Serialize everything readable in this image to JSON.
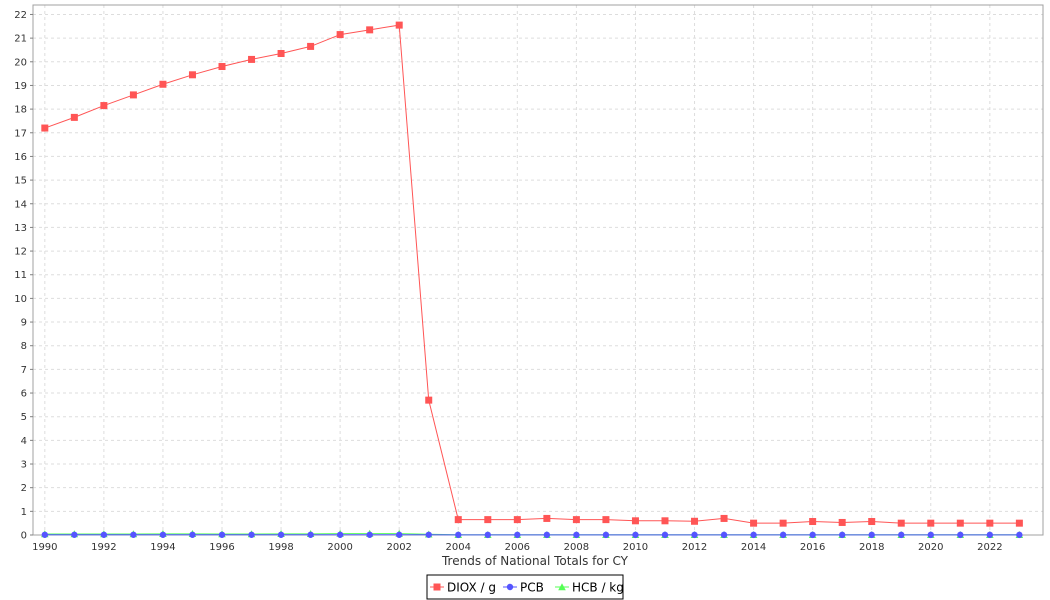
{
  "chart_data": {
    "type": "line",
    "title": "",
    "xlabel": "Trends of National Totals for CY",
    "ylabel": "",
    "x": [
      1990,
      1991,
      1992,
      1993,
      1994,
      1995,
      1996,
      1997,
      1998,
      1999,
      2000,
      2001,
      2002,
      2003,
      2004,
      2005,
      2006,
      2007,
      2008,
      2009,
      2010,
      2011,
      2012,
      2013,
      2014,
      2015,
      2016,
      2017,
      2018,
      2019,
      2020,
      2021,
      2022,
      2023
    ],
    "x_ticks": [
      "1990",
      "1992",
      "1994",
      "1996",
      "1998",
      "2000",
      "2002",
      "2004",
      "2006",
      "2008",
      "2010",
      "2012",
      "2014",
      "2016",
      "2018",
      "2020",
      "2022"
    ],
    "xlim": [
      1989.6,
      2023.8
    ],
    "ylim": [
      0,
      22.4
    ],
    "y_ticks": [
      "0",
      "1",
      "2",
      "3",
      "4",
      "5",
      "6",
      "7",
      "8",
      "9",
      "10",
      "11",
      "12",
      "13",
      "14",
      "15",
      "16",
      "17",
      "18",
      "19",
      "20",
      "21",
      "22"
    ],
    "grid": true,
    "legend_position": "bottom-center",
    "series": [
      {
        "name": "DIOX / g",
        "color": "#ff5555",
        "marker": "square",
        "values": [
          17.2,
          17.65,
          18.15,
          18.6,
          19.05,
          19.45,
          19.8,
          20.1,
          20.35,
          20.65,
          21.15,
          21.35,
          21.55,
          5.7,
          0.65,
          0.65,
          0.65,
          0.7,
          0.65,
          0.65,
          0.6,
          0.6,
          0.58,
          0.7,
          0.5,
          0.5,
          0.57,
          0.53,
          0.57,
          0.5,
          0.5,
          0.5,
          0.5,
          0.5
        ]
      },
      {
        "name": "PCB",
        "color": "#5555ff",
        "marker": "circle",
        "values": [
          0.01,
          0.01,
          0.01,
          0.01,
          0.01,
          0.01,
          0.01,
          0.01,
          0.01,
          0.01,
          0.01,
          0.01,
          0.01,
          0.01,
          0.005,
          0.005,
          0.005,
          0.005,
          0.005,
          0.005,
          0.005,
          0.005,
          0.005,
          0.005,
          0.005,
          0.005,
          0.005,
          0.005,
          0.005,
          0.005,
          0.005,
          0.005,
          0.005,
          0.005
        ]
      },
      {
        "name": "HCB / kg",
        "color": "#55ff55",
        "marker": "triangle",
        "values": [
          0.04,
          0.04,
          0.04,
          0.04,
          0.05,
          0.05,
          0.04,
          0.04,
          0.05,
          0.05,
          0.06,
          0.06,
          0.06,
          0.03,
          0.01,
          0.01,
          0.01,
          0.01,
          0.01,
          0.01,
          0.01,
          0.01,
          0.01,
          0.01,
          0.01,
          0.01,
          0.01,
          0.01,
          0.01,
          0.01,
          0.01,
          0.01,
          0.01,
          0.01
        ]
      }
    ]
  }
}
